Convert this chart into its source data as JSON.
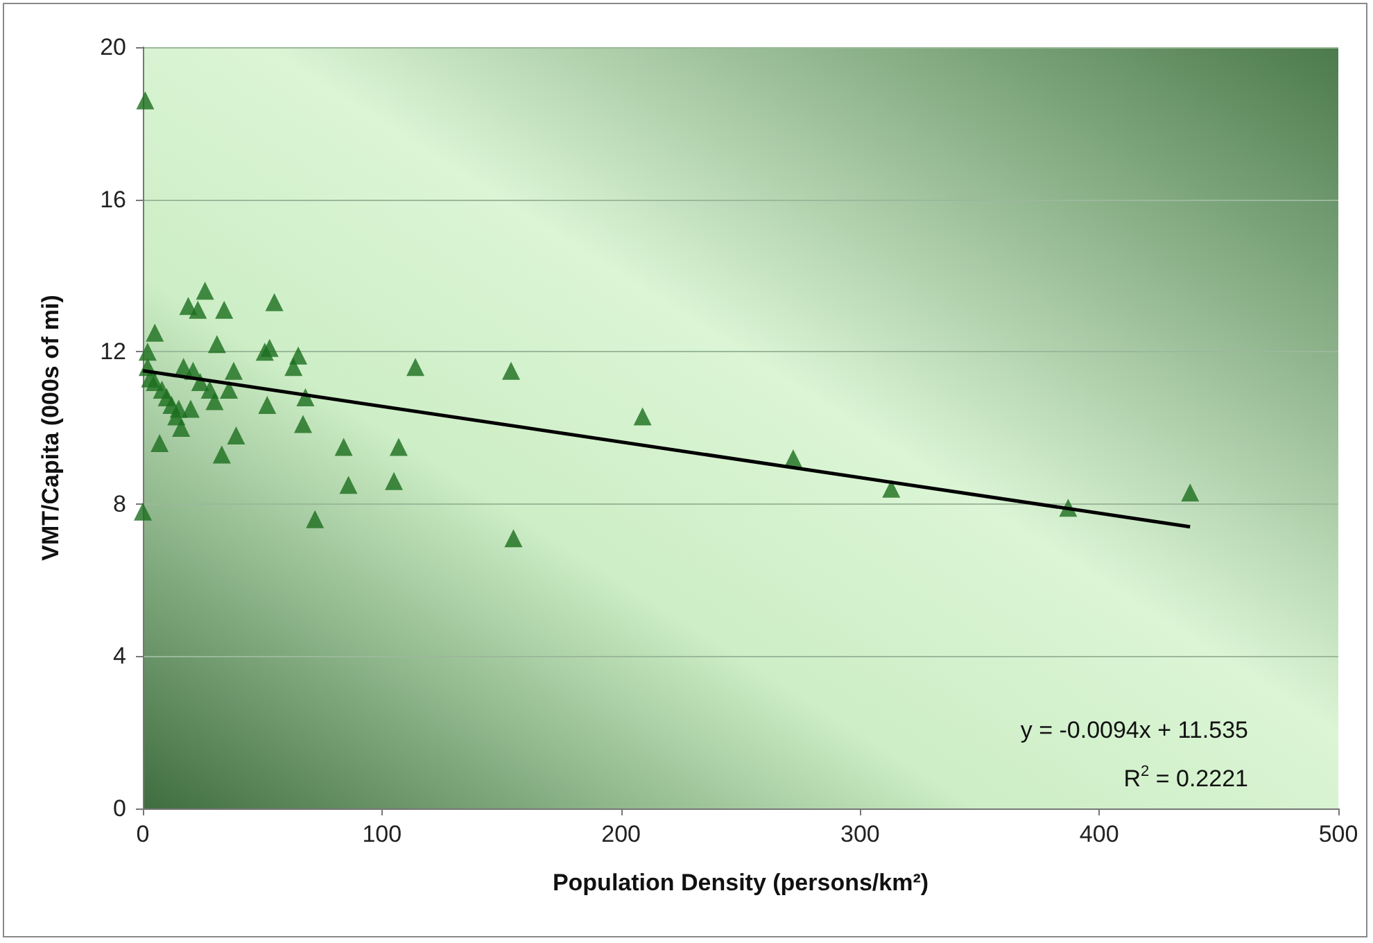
{
  "chart_data": {
    "type": "scatter",
    "xlabel": "Population Density (persons/km²)",
    "ylabel": "VMT/Capita (000s of mi)",
    "xlim": [
      0,
      500
    ],
    "xticks": [
      0,
      100,
      200,
      300,
      400,
      500
    ],
    "ylim": [
      0,
      20
    ],
    "yticks": [
      0,
      4,
      8,
      12,
      16,
      20
    ],
    "grid": "y",
    "marker": "triangle",
    "series": [
      {
        "color": "#1b6e1e",
        "x": [
          1,
          0,
          2,
          2,
          3,
          5,
          5,
          7,
          8,
          10,
          12,
          14,
          15,
          16,
          17,
          19,
          20,
          21,
          23,
          24,
          26,
          28,
          30,
          31,
          33,
          34,
          36,
          38,
          39,
          51,
          52,
          53,
          55,
          63,
          65,
          67,
          68,
          72,
          84,
          86,
          105,
          107,
          114,
          154,
          155,
          209,
          272,
          313,
          387,
          438
        ],
        "values": [
          18.6,
          7.8,
          12.0,
          11.6,
          11.3,
          12.5,
          11.2,
          9.6,
          11.0,
          10.8,
          10.6,
          10.3,
          10.5,
          10.0,
          11.6,
          13.2,
          10.5,
          11.5,
          13.1,
          11.2,
          13.6,
          11.0,
          10.7,
          12.2,
          9.3,
          13.1,
          11.0,
          11.5,
          9.8,
          12.0,
          10.6,
          12.1,
          13.3,
          11.6,
          11.9,
          10.1,
          10.8,
          7.6,
          9.5,
          8.5,
          8.6,
          9.5,
          11.6,
          11.5,
          7.1,
          10.3,
          9.2,
          8.4,
          7.9,
          8.3
        ]
      },
      {
        "type": "line",
        "color": "#000000",
        "marker": "none",
        "x": [
          0,
          438
        ],
        "values": [
          11.5,
          7.4
        ]
      }
    ],
    "annotations": [
      "y = -0.0094x + 11.535",
      "R$^{2}$ = 0.2221"
    ]
  }
}
